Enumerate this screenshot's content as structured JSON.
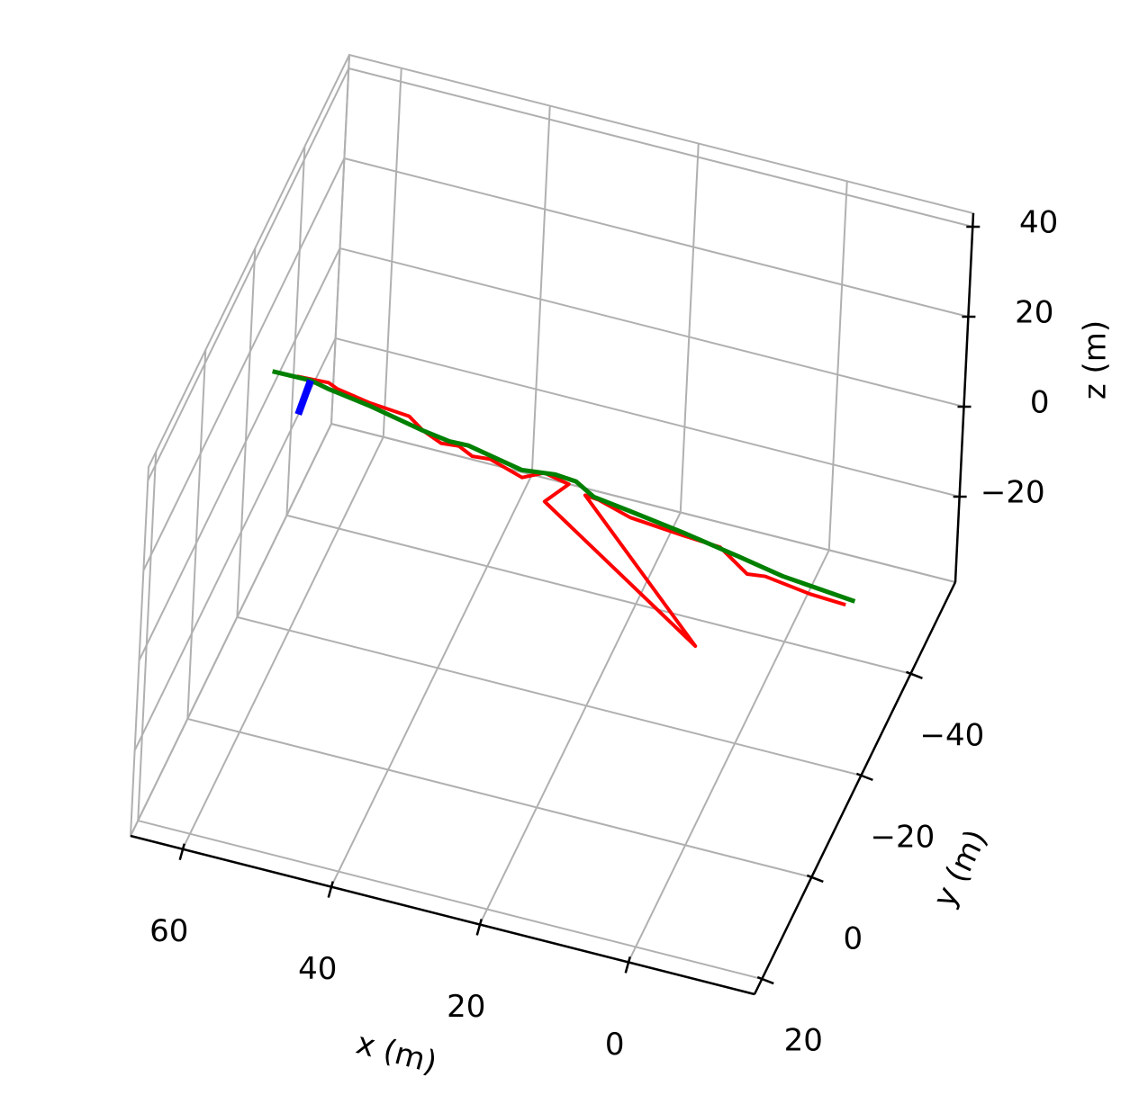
{
  "chart_data": {
    "type": "line3d",
    "xlabel": "x (m)",
    "ylabel": "y (m)",
    "zlabel": "z (m)",
    "xlim": [
      -17,
      67
    ],
    "ylim": [
      -58,
      23
    ],
    "zlim": [
      -39,
      43
    ],
    "xticks": [
      0,
      20,
      40,
      60
    ],
    "yticks": [
      {
        "value": -40,
        "label": "−40"
      },
      {
        "value": -20,
        "label": "−20"
      },
      0,
      20
    ],
    "zticks": [
      {
        "value": -20,
        "label": "−20"
      },
      0,
      20,
      40
    ],
    "grid": true,
    "series": [
      {
        "color": "#ff0000",
        "x": [
          64.7,
          60.5,
          59.1,
          54.5,
          48.9,
          46.4,
          43.5,
          41.2,
          39.0,
          36.7,
          31.8,
          29.4,
          25.8,
          27.7,
          1.2,
          23.2,
          21.4,
          16.5,
          12.8,
          9.0,
          4.0,
          -0.8,
          -3.1,
          -9.5,
          -14.4
        ],
        "y": [
          -33.7,
          -34.0,
          -33.3,
          -32.3,
          -31.7,
          -29.8,
          -28.4,
          -28.7,
          -27.5,
          -27.8,
          -26.0,
          -27.8,
          -26.9,
          -22.8,
          -4.2,
          -25.7,
          -25.5,
          -23.8,
          -23.4,
          -23.0,
          -22.6,
          -19.1,
          -19.5,
          -18.4,
          -18.1
        ],
        "z": [
          0,
          0,
          0,
          0,
          0,
          0,
          0,
          0,
          0,
          0,
          0,
          0,
          0,
          0,
          0,
          0,
          0,
          0,
          0,
          0,
          0,
          0,
          0,
          0,
          0
        ]
      },
      {
        "color": "#008000",
        "x": [
          67.9,
          62.8,
          60.2,
          54.4,
          46.4,
          42.6,
          40.1,
          32.3,
          28.0,
          25.1,
          22.1,
          16.9,
          9.2,
          1.3,
          -5.2,
          -15.3
        ],
        "y": [
          -33.5,
          -33.6,
          -32.9,
          -31.8,
          -29.8,
          -29.1,
          -29.2,
          -27.3,
          -28.0,
          -27.7,
          -25.8,
          -24.9,
          -23.5,
          -21.8,
          -20.3,
          -19.1
        ],
        "z": [
          0,
          0,
          0,
          0,
          0,
          0,
          0,
          0,
          0,
          0,
          0,
          0,
          0,
          0,
          0,
          0
        ]
      },
      {
        "color": "#0000ff",
        "x": [
          62.8,
          62.3
        ],
        "y": [
          -33.6,
          -27.1
        ],
        "z": [
          0,
          0
        ]
      }
    ]
  }
}
